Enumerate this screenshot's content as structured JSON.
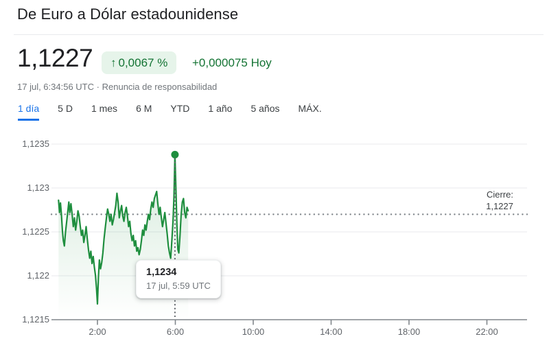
{
  "header": {
    "title": "De Euro a Dólar estadounidense"
  },
  "quote": {
    "price": "1,1227",
    "change_arrow": "↑",
    "change_percent": "0,0067 %",
    "change_absolute": "+0,000075",
    "change_period": "Hoy",
    "timestamp": "17 jul, 6:34:56 UTC",
    "separator": "·",
    "disclaimer": "Renuncia de responsabilidad"
  },
  "tabs": [
    {
      "label": "1 día",
      "active": true
    },
    {
      "label": "5 D",
      "active": false
    },
    {
      "label": "1 mes",
      "active": false
    },
    {
      "label": "6 M",
      "active": false
    },
    {
      "label": "YTD",
      "active": false
    },
    {
      "label": "1 año",
      "active": false
    },
    {
      "label": "5 años",
      "active": false
    },
    {
      "label": "MÁX.",
      "active": false
    }
  ],
  "colors": {
    "accent_blue": "#1a73e8",
    "positive_green": "#137333",
    "line_green": "#1e8e3e",
    "badge_bg": "#e6f4ea",
    "grid": "#e8eaed",
    "axis": "#80868b",
    "dotted": "#5f6368"
  },
  "chart_data": {
    "type": "line",
    "xlabel": "",
    "ylabel": "",
    "xlim_hours": [
      0,
      24
    ],
    "ylim": [
      1.1215,
      1.1235
    ],
    "grid": true,
    "yticks": [
      "1,1235",
      "1,123",
      "1,1225",
      "1,122",
      "1,1215"
    ],
    "ytick_values": [
      1.1235,
      1.123,
      1.1225,
      1.122,
      1.1215
    ],
    "xticks": [
      "2:00",
      "6:00",
      "10:00",
      "14:00",
      "18:00",
      "22:00"
    ],
    "xtick_values": [
      2,
      6,
      10,
      14,
      18,
      22
    ],
    "close_value": 1.1227,
    "close_label_title": "Cierre:",
    "close_label_value": "1,1227",
    "marker": {
      "hour": 5.98,
      "value": 1.12338,
      "price_label": "1,1234",
      "time_label": "17 jul, 5:59 UTC"
    },
    "points": [
      [
        0.0,
        1.12286
      ],
      [
        0.05,
        1.12272
      ],
      [
        0.1,
        1.12283
      ],
      [
        0.15,
        1.1227
      ],
      [
        0.2,
        1.12252
      ],
      [
        0.25,
        1.1224
      ],
      [
        0.3,
        1.12234
      ],
      [
        0.36,
        1.1225
      ],
      [
        0.42,
        1.12262
      ],
      [
        0.48,
        1.12274
      ],
      [
        0.53,
        1.12284
      ],
      [
        0.58,
        1.12272
      ],
      [
        0.64,
        1.12282
      ],
      [
        0.7,
        1.1227
      ],
      [
        0.76,
        1.12256
      ],
      [
        0.82,
        1.12266
      ],
      [
        0.88,
        1.12252
      ],
      [
        0.94,
        1.12262
      ],
      [
        1.0,
        1.12274
      ],
      [
        1.06,
        1.12268
      ],
      [
        1.12,
        1.12256
      ],
      [
        1.18,
        1.12246
      ],
      [
        1.24,
        1.12252
      ],
      [
        1.3,
        1.12238
      ],
      [
        1.36,
        1.12246
      ],
      [
        1.42,
        1.12256
      ],
      [
        1.48,
        1.12242
      ],
      [
        1.54,
        1.1223
      ],
      [
        1.6,
        1.1222
      ],
      [
        1.66,
        1.12228
      ],
      [
        1.72,
        1.12214
      ],
      [
        1.78,
        1.12222
      ],
      [
        1.84,
        1.1221
      ],
      [
        1.9,
        1.122
      ],
      [
        1.95,
        1.12186
      ],
      [
        2.0,
        1.12168
      ],
      [
        2.05,
        1.12198
      ],
      [
        2.1,
        1.12218
      ],
      [
        2.16,
        1.12208
      ],
      [
        2.22,
        1.12215
      ],
      [
        2.28,
        1.12226
      ],
      [
        2.34,
        1.12242
      ],
      [
        2.4,
        1.12254
      ],
      [
        2.46,
        1.12266
      ],
      [
        2.52,
        1.12276
      ],
      [
        2.58,
        1.1227
      ],
      [
        2.64,
        1.12262
      ],
      [
        2.7,
        1.1227
      ],
      [
        2.76,
        1.12258
      ],
      [
        2.82,
        1.12264
      ],
      [
        2.88,
        1.12272
      ],
      [
        2.94,
        1.1228
      ],
      [
        3.0,
        1.12294
      ],
      [
        3.06,
        1.12284
      ],
      [
        3.12,
        1.12266
      ],
      [
        3.18,
        1.12274
      ],
      [
        3.24,
        1.1228
      ],
      [
        3.3,
        1.12268
      ],
      [
        3.36,
        1.12262
      ],
      [
        3.42,
        1.12272
      ],
      [
        3.48,
        1.12278
      ],
      [
        3.54,
        1.12268
      ],
      [
        3.6,
        1.12256
      ],
      [
        3.66,
        1.12262
      ],
      [
        3.72,
        1.12248
      ],
      [
        3.78,
        1.1224
      ],
      [
        3.84,
        1.12246
      ],
      [
        3.9,
        1.12234
      ],
      [
        3.96,
        1.1224
      ],
      [
        4.02,
        1.12228
      ],
      [
        4.08,
        1.12232
      ],
      [
        4.14,
        1.12224
      ],
      [
        4.2,
        1.1223
      ],
      [
        4.26,
        1.1224
      ],
      [
        4.32,
        1.12252
      ],
      [
        4.38,
        1.12246
      ],
      [
        4.44,
        1.12258
      ],
      [
        4.5,
        1.12252
      ],
      [
        4.56,
        1.12262
      ],
      [
        4.62,
        1.1227
      ],
      [
        4.68,
        1.12264
      ],
      [
        4.74,
        1.12276
      ],
      [
        4.8,
        1.12284
      ],
      [
        4.86,
        1.12278
      ],
      [
        4.92,
        1.12288
      ],
      [
        4.98,
        1.12292
      ],
      [
        5.04,
        1.12296
      ],
      [
        5.1,
        1.12282
      ],
      [
        5.16,
        1.1227
      ],
      [
        5.22,
        1.12278
      ],
      [
        5.28,
        1.12266
      ],
      [
        5.34,
        1.12256
      ],
      [
        5.4,
        1.12264
      ],
      [
        5.46,
        1.12272
      ],
      [
        5.52,
        1.1226
      ],
      [
        5.58,
        1.12248
      ],
      [
        5.64,
        1.12234
      ],
      [
        5.7,
        1.12226
      ],
      [
        5.76,
        1.1222
      ],
      [
        5.82,
        1.1224
      ],
      [
        5.88,
        1.12262
      ],
      [
        5.93,
        1.1229
      ],
      [
        5.98,
        1.12338
      ],
      [
        6.03,
        1.12298
      ],
      [
        6.08,
        1.12258
      ],
      [
        6.13,
        1.1223
      ],
      [
        6.18,
        1.12226
      ],
      [
        6.24,
        1.12246
      ],
      [
        6.3,
        1.1227
      ],
      [
        6.36,
        1.12284
      ],
      [
        6.42,
        1.12288
      ],
      [
        6.48,
        1.12272
      ],
      [
        6.54,
        1.12266
      ],
      [
        6.6,
        1.12278
      ],
      [
        6.66,
        1.12274
      ]
    ]
  }
}
